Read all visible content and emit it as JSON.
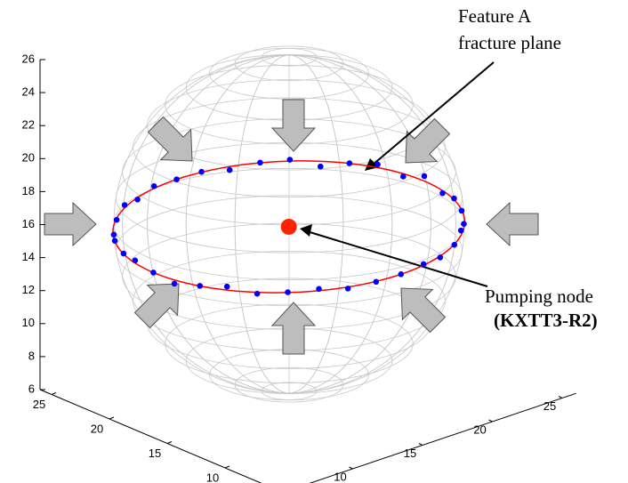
{
  "chart_data": {
    "type": "scatter3d",
    "xlim": [
      5,
      26
    ],
    "ylim": [
      5,
      26
    ],
    "zlim": [
      6,
      26
    ],
    "xticks": [
      10,
      15,
      20,
      25
    ],
    "yticks": [
      10,
      15,
      20,
      25
    ],
    "zticks": [
      6,
      8,
      10,
      12,
      14,
      16,
      18,
      20,
      22,
      24,
      26
    ],
    "points": {
      "color": "#0000ff",
      "x": [
        24.4,
        24.3,
        23.8,
        23.1,
        22.1,
        20.9,
        19.6,
        18.0,
        16.4,
        14.7,
        13.0,
        11.4,
        9.9,
        8.5,
        7.3,
        6.3,
        5.6,
        5.1,
        5.0,
        5.1,
        5.6,
        6.3,
        7.3,
        8.5,
        9.9,
        11.4,
        13.0,
        14.7,
        16.4,
        18.0,
        19.6,
        20.9,
        22.1,
        23.1,
        23.8,
        24.3
      ],
      "y": [
        16.2,
        17.9,
        19.5,
        21.1,
        22.4,
        23.6,
        24.6,
        25.3,
        25.8,
        25.9,
        25.8,
        25.3,
        24.6,
        23.6,
        22.4,
        21.1,
        19.5,
        17.9,
        16.2,
        14.5,
        12.9,
        11.4,
        10.0,
        8.8,
        7.8,
        7.1,
        6.6,
        6.5,
        6.6,
        7.1,
        7.8,
        8.8,
        10.0,
        11.4,
        12.9,
        14.5
      ],
      "z": [
        16.3,
        15.8,
        16.2,
        16.0,
        15.7,
        16.1,
        16.0,
        15.8,
        16.0,
        16.0,
        16.1,
        15.9,
        16.2,
        16.0,
        15.8,
        16.1,
        16.0,
        16.2,
        16.0,
        15.8,
        16.0,
        16.2,
        15.9,
        16.0,
        16.1,
        15.9,
        16.0,
        16.0,
        16.1,
        15.9,
        16.0,
        16.2,
        15.9,
        16.0,
        16.1,
        15.8
      ]
    },
    "fit": {
      "center": [
        14.7,
        16.2,
        16
      ],
      "radius": 9.7,
      "color": "#ff0000"
    },
    "node": {
      "x": 14.7,
      "y": 16.2,
      "z": 16,
      "color": "#ff2200"
    },
    "annotations": [
      "Feature A",
      "fracture plane",
      "Pumping node",
      "(KXTT3-R2)"
    ]
  }
}
